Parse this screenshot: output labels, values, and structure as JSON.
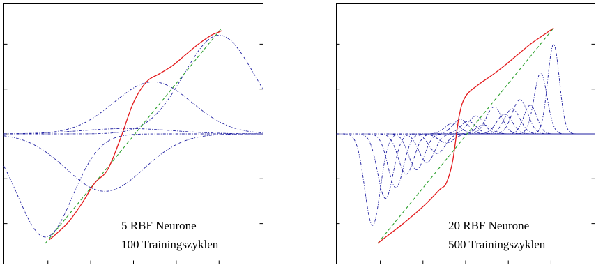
{
  "colors": {
    "target": "#2ca02c",
    "output": "#e41a1c",
    "basis": "#1f1fa0",
    "axes": "#000000"
  },
  "chart_data": [
    {
      "type": "line",
      "title": "",
      "xlabel": "",
      "ylabel": "",
      "xlim": [
        -1,
        1
      ],
      "ylim": [
        -1.45,
        1.45
      ],
      "grid": false,
      "annotation": [
        "5 RBF Neurone",
        "100 Trainingszyklen"
      ],
      "target": {
        "style": "dashed",
        "x": [
          -0.68,
          0.68
        ],
        "y": [
          -1.22,
          1.18
        ]
      },
      "output": {
        "style": "solid",
        "x": [
          -0.65,
          -0.6,
          -0.5,
          -0.4,
          -0.3,
          -0.2,
          -0.1,
          0.0,
          0.1,
          0.2,
          0.3,
          0.4,
          0.5,
          0.6,
          0.65,
          0.68
        ],
        "y": [
          -1.18,
          -1.12,
          -0.98,
          -0.78,
          -0.55,
          -0.4,
          -0.05,
          0.35,
          0.58,
          0.67,
          0.76,
          0.88,
          1.0,
          1.1,
          1.13,
          1.15
        ]
      },
      "basis": [
        {
          "style": "dashdot",
          "center": -0.68,
          "width": 0.21,
          "weight": -1.15
        },
        {
          "style": "dashdot",
          "center": -0.22,
          "width": 0.3,
          "weight": -0.64
        },
        {
          "style": "dashdot",
          "center": -0.05,
          "width": 0.35,
          "weight": 0.06
        },
        {
          "style": "dashdot",
          "center": 0.15,
          "width": 0.3,
          "weight": 0.58
        },
        {
          "style": "dashdot",
          "center": 0.66,
          "width": 0.27,
          "weight": 1.1
        }
      ]
    },
    {
      "type": "line",
      "title": "",
      "xlabel": "",
      "ylabel": "",
      "xlim": [
        -1,
        1
      ],
      "ylim": [
        -1.45,
        1.45
      ],
      "grid": false,
      "annotation": [
        "20 RBF Neurone",
        "500 Trainingszyklen"
      ],
      "target": {
        "style": "dashed",
        "x": [
          -0.68,
          0.68
        ],
        "y": [
          -1.22,
          1.18
        ]
      },
      "output": {
        "style": "solid",
        "x": [
          -0.68,
          -0.6,
          -0.5,
          -0.4,
          -0.3,
          -0.2,
          -0.15,
          -0.1,
          -0.05,
          0.0,
          0.1,
          0.2,
          0.3,
          0.4,
          0.5,
          0.6,
          0.68
        ],
        "y": [
          -1.22,
          -1.13,
          -1.02,
          -0.9,
          -0.77,
          -0.62,
          -0.55,
          -0.3,
          0.2,
          0.42,
          0.55,
          0.65,
          0.76,
          0.88,
          1.0,
          1.1,
          1.18
        ]
      },
      "basis": [
        {
          "style": "dashdot",
          "center": -0.72,
          "width": 0.06,
          "weight": -1.02
        },
        {
          "style": "dashdot",
          "center": -0.62,
          "width": 0.06,
          "weight": -0.72
        },
        {
          "style": "dashdot",
          "center": -0.54,
          "width": 0.06,
          "weight": -0.6
        },
        {
          "style": "dashdot",
          "center": -0.46,
          "width": 0.06,
          "weight": -0.45
        },
        {
          "style": "dashdot",
          "center": -0.38,
          "width": 0.06,
          "weight": -0.4
        },
        {
          "style": "dashdot",
          "center": -0.3,
          "width": 0.06,
          "weight": -0.32
        },
        {
          "style": "dashdot",
          "center": -0.22,
          "width": 0.06,
          "weight": -0.22
        },
        {
          "style": "dashdot",
          "center": -0.15,
          "width": 0.06,
          "weight": -0.1
        },
        {
          "style": "dashdot",
          "center": -0.1,
          "width": 0.06,
          "weight": 0.12
        },
        {
          "style": "dashdot",
          "center": -0.04,
          "width": 0.06,
          "weight": 0.16
        },
        {
          "style": "dashdot",
          "center": 0.02,
          "width": 0.06,
          "weight": 0.14
        },
        {
          "style": "dashdot",
          "center": 0.08,
          "width": 0.06,
          "weight": 0.2
        },
        {
          "style": "dashdot",
          "center": 0.14,
          "width": 0.06,
          "weight": 0.1
        },
        {
          "style": "dashdot",
          "center": 0.22,
          "width": 0.06,
          "weight": 0.3
        },
        {
          "style": "dashdot",
          "center": 0.3,
          "width": 0.06,
          "weight": 0.22
        },
        {
          "style": "dashdot",
          "center": 0.36,
          "width": 0.06,
          "weight": 0.28
        },
        {
          "style": "dashdot",
          "center": 0.42,
          "width": 0.06,
          "weight": 0.38
        },
        {
          "style": "dashdot",
          "center": 0.5,
          "width": 0.05,
          "weight": 0.32
        },
        {
          "style": "dashdot",
          "center": 0.58,
          "width": 0.05,
          "weight": 0.68
        },
        {
          "style": "dashdot",
          "center": 0.68,
          "width": 0.045,
          "weight": 1.0
        }
      ]
    }
  ]
}
